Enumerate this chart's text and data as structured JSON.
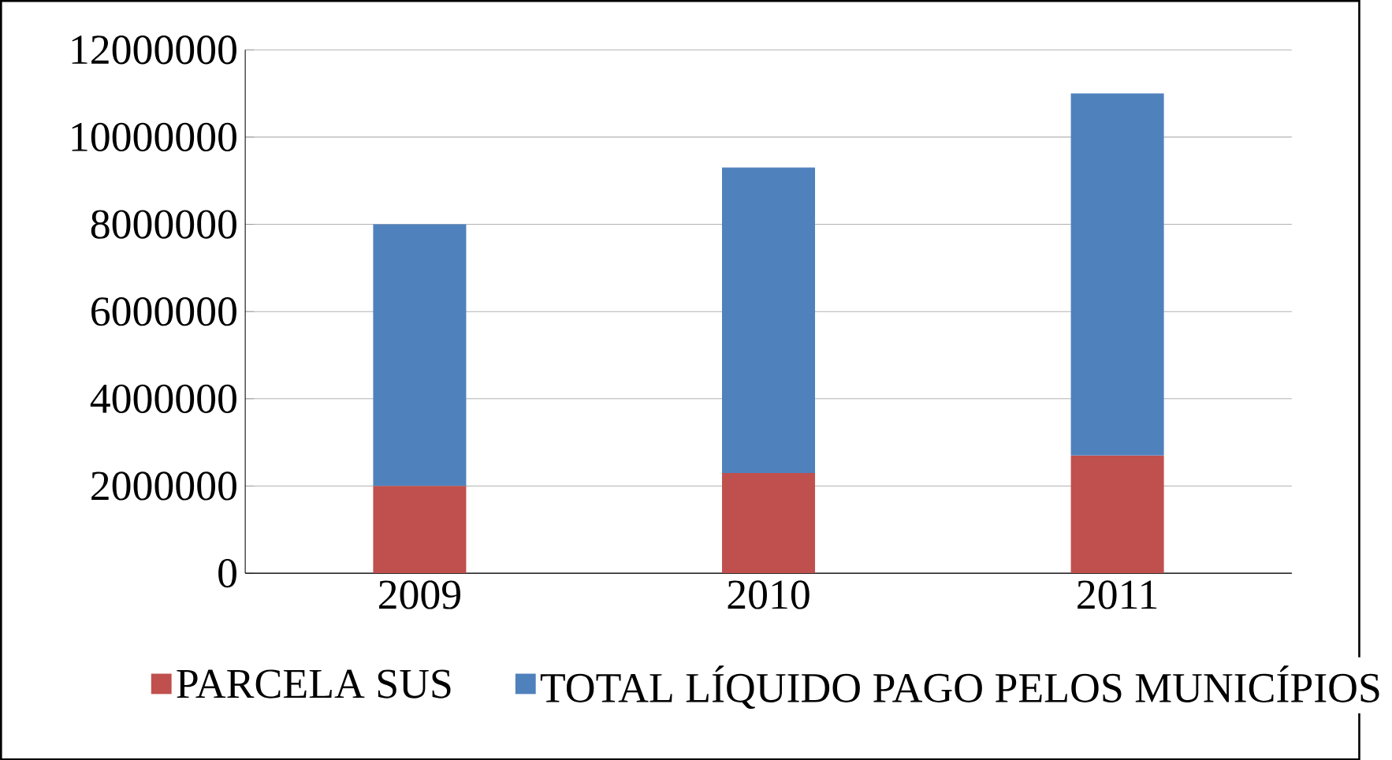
{
  "chart_data": {
    "type": "bar",
    "stacked": true,
    "categories": [
      "2009",
      "2010",
      "2011"
    ],
    "series": [
      {
        "name": "PARCELA SUS",
        "color": "#c0504d",
        "values": [
          2000000,
          2300000,
          2700000
        ]
      },
      {
        "name": "TOTAL LÍQUIDO PAGO PELOS MUNICÍPIOS",
        "color": "#4f81bd",
        "values": [
          6000000,
          7000000,
          8300000
        ]
      }
    ],
    "ylim": [
      0,
      12000000
    ],
    "yticks": [
      0,
      2000000,
      4000000,
      6000000,
      8000000,
      10000000,
      12000000
    ],
    "grid": "y",
    "legend": "bottom"
  }
}
